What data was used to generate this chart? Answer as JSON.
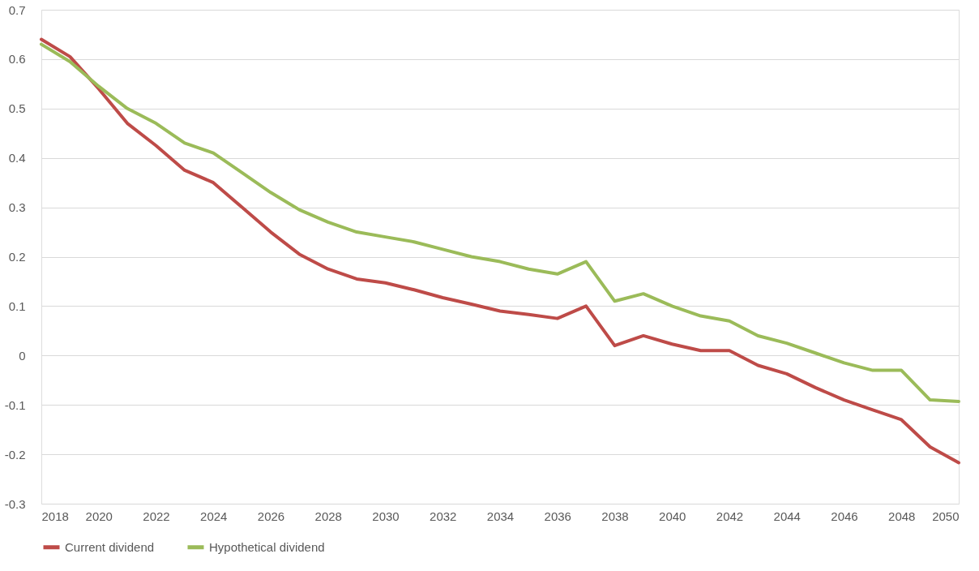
{
  "chart_data": {
    "type": "line",
    "x": [
      2018,
      2019,
      2020,
      2021,
      2022,
      2023,
      2024,
      2025,
      2026,
      2027,
      2028,
      2029,
      2030,
      2031,
      2032,
      2033,
      2034,
      2035,
      2036,
      2037,
      2038,
      2039,
      2040,
      2041,
      2042,
      2043,
      2044,
      2045,
      2046,
      2047,
      2048,
      2049,
      2050
    ],
    "series": [
      {
        "name": "Current dividend",
        "color": "#be4b48",
        "values": [
          0.64,
          0.605,
          0.54,
          0.47,
          0.425,
          0.375,
          0.35,
          0.3,
          0.25,
          0.205,
          0.175,
          0.155,
          0.147,
          0.133,
          0.117,
          0.104,
          0.09,
          0.083,
          0.075,
          0.1,
          0.02,
          0.04,
          0.023,
          0.01,
          0.01,
          -0.02,
          -0.037,
          -0.065,
          -0.09,
          -0.11,
          -0.13,
          -0.185,
          -0.217
        ]
      },
      {
        "name": "Hypothetical dividend",
        "color": "#9bbb59",
        "values": [
          0.63,
          0.595,
          0.545,
          0.5,
          0.47,
          0.43,
          0.41,
          0.37,
          0.33,
          0.295,
          0.27,
          0.25,
          0.24,
          0.23,
          0.215,
          0.2,
          0.19,
          0.175,
          0.165,
          0.19,
          0.11,
          0.125,
          0.1,
          0.08,
          0.07,
          0.04,
          0.025,
          0.005,
          -0.015,
          -0.03,
          -0.03,
          -0.09,
          -0.093
        ]
      }
    ],
    "xlim": [
      2018,
      2050
    ],
    "xticks": [
      2018,
      2020,
      2022,
      2024,
      2026,
      2028,
      2030,
      2032,
      2034,
      2036,
      2038,
      2040,
      2042,
      2044,
      2046,
      2048,
      2050
    ],
    "ylim": [
      -0.3,
      0.7
    ],
    "yticks": [
      -0.3,
      -0.2,
      -0.1,
      0,
      0.1,
      0.2,
      0.3,
      0.4,
      0.5,
      0.6,
      0.7
    ],
    "grid": "y",
    "legend": "bottom",
    "marker": "none",
    "line_style": "solid"
  }
}
